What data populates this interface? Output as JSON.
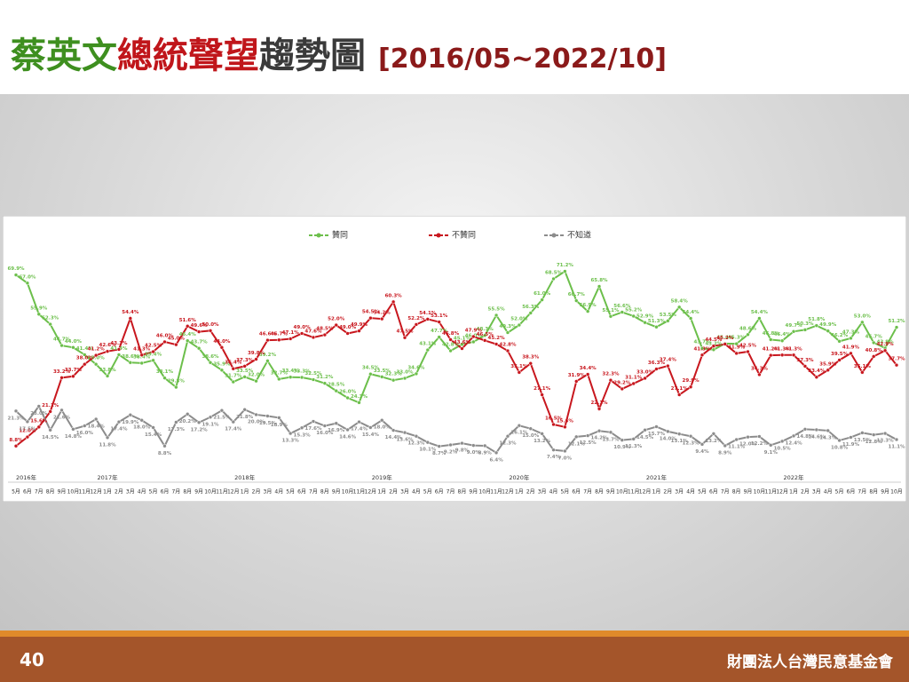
{
  "slide": {
    "title_parts": [
      "蔡英文",
      "總統聲望",
      "趨勢圖",
      "[2016/05~2022/10]"
    ],
    "page_number": "40",
    "organization": "財團法人台灣民意基金會"
  },
  "chart_data": {
    "type": "line",
    "categories": [
      "5月",
      "6月",
      "7月",
      "8月",
      "9月",
      "10月",
      "11月",
      "12月",
      "1月",
      "2月",
      "3月",
      "4月",
      "5月",
      "6月",
      "7月",
      "8月",
      "9月",
      "10月",
      "11月",
      "12月",
      "1月",
      "2月",
      "3月",
      "4月",
      "5月",
      "6月",
      "7月",
      "8月",
      "9月",
      "10月",
      "11月",
      "12月",
      "1月",
      "2月",
      "3月",
      "4月",
      "5月",
      "6月",
      "7月",
      "8月",
      "9月",
      "10月",
      "11月",
      "12月",
      "1月",
      "2月",
      "3月",
      "4月",
      "5月",
      "6月",
      "7月",
      "8月",
      "9月",
      "10月",
      "11月",
      "12月",
      "1月",
      "2月",
      "3月",
      "4月",
      "5月",
      "6月",
      "7月",
      "8月",
      "9月",
      "10月",
      "11月",
      "12月",
      "1月",
      "2月",
      "3月",
      "4月",
      "5月",
      "6月",
      "7月",
      "8月",
      "9月",
      "10月"
    ],
    "years": [
      "2016年",
      "2017年",
      "2018年",
      "2019年",
      "2020年",
      "2021年",
      "2022年"
    ],
    "ylim": [
      0,
      85
    ],
    "legend": "top",
    "series": [
      {
        "name": "贊同",
        "color": "#6cbf4b",
        "values": [
          69.9,
          67.0,
          55.9,
          52.3,
          44.7,
          44.0,
          41.4,
          38.0,
          33.8,
          41.4,
          38.6,
          38.4,
          39.4,
          33.1,
          29.8,
          46.4,
          43.7,
          38.6,
          35.9,
          31.7,
          33.5,
          32.0,
          39.2,
          32.7,
          33.4,
          33.3,
          32.5,
          31.2,
          28.5,
          26.0,
          24.3,
          34.5,
          33.5,
          32.3,
          33.0,
          34.6,
          43.1,
          47.7,
          42.8,
          45.1,
          46.0,
          48.3,
          55.5,
          49.3,
          52.0,
          56.3,
          61.0,
          68.5,
          71.2,
          60.7,
          56.9,
          65.8,
          55.1,
          56.6,
          55.2,
          52.9,
          51.3,
          53.5,
          58.4,
          54.4,
          43.7,
          43.2,
          45.4,
          45.3,
          48.6,
          54.4,
          46.8,
          46.4,
          49.7,
          50.3,
          51.8,
          49.9,
          46.2,
          47.3,
          53.0,
          45.7,
          43.8,
          51.2
        ],
        "value_labels": [
          "69.9%",
          "67.0%",
          "55.9%",
          "52.3%",
          "44.7%",
          "44.0%",
          "41.4%",
          "38.0%",
          "33.8%",
          "41.4%",
          "38.6%",
          "38.4%",
          "39.4%",
          "33.1%",
          "29.8%",
          "46.4%",
          "43.7%",
          "38.6%",
          "35.9%",
          "31.7%",
          "33.5%",
          "32.0%",
          "39.2%",
          "32.7%",
          "33.4%",
          "33.3%",
          "32.5%",
          "31.2%",
          "28.5%",
          "26.0%",
          "24.3%",
          "34.5%",
          "33.5%",
          "32.3%",
          "33.0%",
          "34.6%",
          "43.1%",
          "47.7%",
          "42.8%",
          "45.1%",
          "46.0%",
          "48.3%",
          "55.5%",
          "49.3%",
          "52.0%",
          "56.3%",
          "61.0%",
          "68.5%",
          "71.2%",
          "60.7%",
          "56.9%",
          "65.8%",
          "55.1%",
          "56.6%",
          "55.2%",
          "52.9%",
          "51.3%",
          "53.5%",
          "58.4%",
          "54.4%",
          "43.7%",
          "43.2%",
          "45.4%",
          "45.3%",
          "48.6%",
          "54.4%",
          "46.8%",
          "46.4%",
          "49.7%",
          "50.3%",
          "51.8%",
          "49.9%",
          "46.2%",
          "47.3%",
          "53.0%",
          "45.7%",
          "43.8%",
          "51.2%"
        ]
      },
      {
        "name": "不贊同",
        "color": "#c8171e",
        "values": [
          8.8,
          12.0,
          15.6,
          21.1,
          33.2,
          33.7,
          38.0,
          41.2,
          42.6,
          43.3,
          54.4,
          41.3,
          42.5,
          46.0,
          45.0,
          51.6,
          49.6,
          50.0,
          44.0,
          36.4,
          37.3,
          39.8,
          46.6,
          46.7,
          47.1,
          49.0,
          47.6,
          48.5,
          52.0,
          49.0,
          49.9,
          54.5,
          54.2,
          60.3,
          47.5,
          52.2,
          54.1,
          53.1,
          46.8,
          43.6,
          47.9,
          46.5,
          45.2,
          42.8,
          35.1,
          38.3,
          27.1,
          16.5,
          15.6,
          31.9,
          34.4,
          22.1,
          32.3,
          29.2,
          31.1,
          33.0,
          36.3,
          37.4,
          27.1,
          29.9,
          41.3,
          44.5,
          45.2,
          41.9,
          42.5,
          34.3,
          41.2,
          41.3,
          41.3,
          37.3,
          33.4,
          35.9,
          39.5,
          41.9,
          35.1,
          40.8,
          42.9,
          37.7
        ],
        "value_labels": [
          "8.8%",
          "12.0%",
          "15.6%",
          "21.1%",
          "33.2%",
          "33.7%",
          "38.0%",
          "41.2%",
          "42.6%",
          "43.3%",
          "54.4%",
          "41.3%",
          "42.5%",
          "46.0%",
          "45.0%",
          "51.6%",
          "49.6%",
          "50.0%",
          "44.0%",
          "36.4%",
          "37.3%",
          "39.8%",
          "46.6%",
          "46.7%",
          "47.1%",
          "49.0%",
          "47.6%",
          "48.5%",
          "52.0%",
          "49.0%",
          "49.9%",
          "54.5%",
          "54.2%",
          "60.3%",
          "47.5%",
          "52.2%",
          "54.1%",
          "53.1%",
          "46.8%",
          "43.6%",
          "47.9%",
          "46.5%",
          "45.2%",
          "42.8%",
          "35.1%",
          "38.3%",
          "27.1%",
          "16.5%",
          "15.6%",
          "31.9%",
          "34.4%",
          "22.1%",
          "32.3%",
          "29.2%",
          "31.1%",
          "33.0%",
          "36.3%",
          "37.4%",
          "27.1%",
          "29.9%",
          "41.3%",
          "44.5%",
          "45.2%",
          "41.9%",
          "42.5%",
          "34.3%",
          "41.2%",
          "41.3%",
          "41.3%",
          "37.3%",
          "33.4%",
          "35.9%",
          "39.5%",
          "41.9%",
          "35.1%",
          "40.8%",
          "42.9%",
          "37.7%"
        ]
      },
      {
        "name": "不知道",
        "color": "#8c8c8c",
        "values": [
          21.3,
          17.5,
          23.0,
          14.5,
          21.6,
          14.8,
          16.0,
          18.4,
          11.8,
          17.4,
          19.9,
          18.0,
          15.4,
          8.8,
          17.3,
          20.2,
          17.2,
          19.1,
          21.5,
          17.4,
          21.8,
          20.0,
          19.5,
          18.9,
          13.3,
          15.3,
          17.6,
          16.0,
          16.9,
          14.6,
          17.4,
          15.4,
          18.0,
          14.4,
          13.6,
          12.3,
          10.1,
          8.7,
          9.2,
          9.8,
          9.0,
          8.9,
          6.4,
          12.3,
          16.1,
          15.0,
          13.2,
          7.4,
          7.0,
          12.1,
          12.5,
          14.2,
          13.7,
          10.9,
          11.3,
          14.5,
          15.7,
          14.0,
          13.1,
          12.3,
          9.4,
          13.2,
          8.9,
          11.1,
          12.0,
          12.2,
          9.1,
          10.5,
          12.4,
          14.8,
          14.6,
          14.3,
          10.8,
          11.9,
          13.5,
          12.8,
          13.3,
          11.1
        ],
        "value_labels": [
          "21.3%",
          "17.5%",
          "23.0%",
          "14.5%",
          "21.6%",
          "14.8%",
          "16.0%",
          "18.4%",
          "11.8%",
          "17.4%",
          "19.9%",
          "18.0%",
          "15.4%",
          "8.8%",
          "17.3%",
          "20.2%",
          "17.2%",
          "19.1%",
          "21.5%",
          "17.4%",
          "21.8%",
          "20.0%",
          "19.5%",
          "18.9%",
          "13.3%",
          "15.3%",
          "17.6%",
          "16.0%",
          "16.9%",
          "14.6%",
          "17.4%",
          "15.4%",
          "18.0%",
          "14.4%",
          "13.6%",
          "12.3%",
          "10.1%",
          "8.7%",
          "9.2%",
          "9.8%",
          "9.0%",
          "8.9%",
          "6.4%",
          "12.3%",
          "16.1%",
          "15.0%",
          "13.2%",
          "7.4%",
          "7.0%",
          "12.1%",
          "12.5%",
          "14.2%",
          "13.7%",
          "10.9%",
          "11.3%",
          "14.5%",
          "15.7%",
          "14.0%",
          "13.1%",
          "12.3%",
          "9.4%",
          "13.2%",
          "8.9%",
          "11.1%",
          "12.0%",
          "12.2%",
          "9.1%",
          "10.5%",
          "12.4%",
          "14.8%",
          "14.6%",
          "14.3%",
          "10.8%",
          "11.9%",
          "13.5%",
          "12.8%",
          "13.3%",
          "11.1%"
        ]
      }
    ]
  }
}
